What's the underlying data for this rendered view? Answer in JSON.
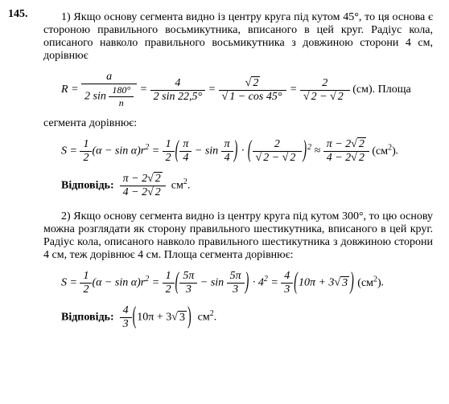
{
  "problem_number": "145.",
  "part1": {
    "intro": "1) Якщо основу сегмента видно із центру круга під кутом 45°, то ця основа є стороною правильного восьмикутника, вписаного в цей круг. Радіус кола, описаного навколо правильного восьмикутника з довжиною сторони 4 см, дорівнює",
    "f1_a": "a",
    "f1_den1a": "2 sin",
    "f1_180": "180°",
    "f1_n": "n",
    "f1_num2": "4",
    "f1_den2": "2 sin 22,5°",
    "f1_sqrt2": "2",
    "f1_den3": "1 − cos 45°",
    "f1_num4": "2",
    "f1_den4_outer": "2 −",
    "f1_den4_inner": "2",
    "f1_unit": "(см)",
    "f1_tail": ". Площа",
    "seg_text": "сегмента дорівнює:",
    "S": "S",
    "half_num": "1",
    "half_den": "2",
    "alpha_expr": "(α − sin α)",
    "r2": "r",
    "sq": "2",
    "pi4_num": "π",
    "pi4_den": "4",
    "sinpi4": "sin",
    "mult_dot": "·",
    "approx": "≈",
    "res_num": "π − 2",
    "res_sqrt2": "2",
    "res_den": "4 − 2",
    "res_sqrt2b": "2",
    "area_unit": "(см",
    "area_unit_end": ")",
    "answer_label": "Відповідь:",
    "answer_unit": "см"
  },
  "part2": {
    "intro": "2) Якщо основу сегмента видно із центру круга під кутом 300°, то цю основу можна розглядати як сторону правильного шестикутника, вписаного в цей круг. Радіус кола, описаного навколо правильного шестикутника з довжиною сторони 4 см, теж дорівнює 4 см. Площа сегмента дорівнює:",
    "fivepi3_num": "5π",
    "fivepi3_den": "3",
    "four_sq": "4",
    "res2_coef_num": "4",
    "res2_coef_den": "3",
    "res2_inside_a": "10π + 3",
    "res2_inside_sqrt": "3",
    "answer_label": "Відповідь:",
    "answer_unit": "см"
  }
}
